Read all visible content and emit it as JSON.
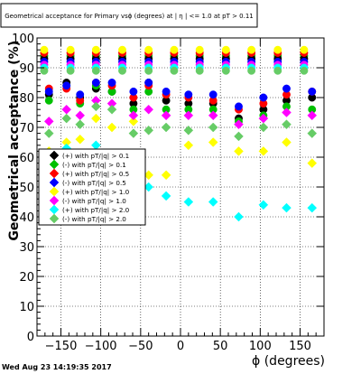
{
  "chart_data": {
    "type": "scatter",
    "title": "Geometrical acceptance for Primary vsϕ (degrees) at | η | <= 1.0 at pT > 0.11",
    "xlabel": "ϕ (degrees)",
    "ylabel": "Geometrical acceptance (%)",
    "xlim": [
      -180,
      180
    ],
    "ylim": [
      0,
      100
    ],
    "x_ticks": [
      -150,
      -100,
      -50,
      0,
      50,
      100,
      150
    ],
    "x_tick_labels": [
      "−150",
      "−100",
      "−50",
      "0",
      "50",
      "100",
      "150"
    ],
    "y_ticks": [
      0,
      10,
      20,
      30,
      40,
      50,
      60,
      70,
      80,
      90,
      100
    ],
    "grid": true,
    "legend_position": "left-middle",
    "series": [
      {
        "name": "(+) with pT/|q| > 0.1",
        "color": "#00c000",
        "marker": "circle",
        "x": [
          -171,
          -138,
          -106,
          -73,
          -40,
          -8,
          24,
          57,
          89,
          122,
          155
        ],
        "y": [
          94,
          94,
          94,
          94,
          94,
          94,
          94,
          94,
          94,
          94,
          94
        ]
      },
      {
        "name": "(-) with pT/|q| > 0.1",
        "color": "#000000",
        "marker": "circle",
        "x": [
          -171,
          -138,
          -106,
          -73,
          -40,
          -8,
          24,
          57,
          89,
          122,
          155
        ],
        "y": [
          93,
          93,
          93,
          93,
          93,
          93,
          93,
          93,
          93,
          93,
          93
        ]
      },
      {
        "name": "(+) with pT/|q| > 0.5",
        "color": "#ff0000",
        "marker": "circle",
        "x": [
          -171,
          -138,
          -106,
          -73,
          -40,
          -8,
          24,
          57,
          89,
          122,
          155
        ],
        "y": [
          95,
          95,
          95,
          95,
          95,
          95,
          95,
          95,
          95,
          95,
          95
        ]
      },
      {
        "name": "(-) with pT/|q| > 0.5",
        "color": "#0000ff",
        "marker": "circle",
        "x": [
          -171,
          -138,
          -106,
          -73,
          -40,
          -8,
          24,
          57,
          89,
          122,
          155
        ],
        "y": [
          92,
          92,
          92,
          92,
          92,
          92,
          92,
          92,
          92,
          92,
          92
        ]
      },
      {
        "name": "(+) with pT/|q| > 1.0",
        "color": "#ffff00",
        "marker": "circle",
        "x": [
          -171,
          -138,
          -106,
          -73,
          -40,
          -8,
          24,
          57,
          89,
          122,
          155
        ],
        "y": [
          96,
          96,
          96,
          96,
          96,
          96,
          96,
          96,
          96,
          96,
          96
        ]
      },
      {
        "name": "(-) with pT/|q| > 1.0",
        "color": "#ff00ff",
        "marker": "circle",
        "x": [
          -171,
          -138,
          -106,
          -73,
          -40,
          -8,
          24,
          57,
          89,
          122,
          155
        ],
        "y": [
          91,
          91,
          91,
          91,
          91,
          91,
          91,
          91,
          91,
          91,
          91
        ]
      },
      {
        "name": "(+) with pT/|q| > 2.0",
        "color": "#00ffff",
        "marker": "circle",
        "x": [
          -171,
          -138,
          -106,
          -73,
          -40,
          -8,
          24,
          57,
          89,
          122,
          155
        ],
        "y": [
          90,
          90,
          90,
          90,
          90,
          90,
          90,
          90,
          90,
          90,
          90
        ]
      },
      {
        "name": "(-) with pT/|q| > 2.0",
        "color": "#66cc66",
        "marker": "circle",
        "x": [
          -171,
          -138,
          -106,
          -73,
          -40,
          -8,
          24,
          57,
          89,
          122,
          155
        ],
        "y": [
          89,
          89,
          89,
          89,
          89,
          89,
          89,
          89,
          89,
          89,
          89
        ]
      },
      {
        "name": "(+) with pT/|q| > 0.1",
        "color": "#000000",
        "marker": "circle",
        "x": [
          -165,
          -143,
          -126,
          -106,
          -86,
          -59,
          -40,
          -18,
          10,
          41,
          73,
          104,
          133,
          165
        ],
        "y": [
          81,
          85,
          80,
          83,
          82,
          78,
          85,
          79,
          78,
          78,
          73,
          76,
          79,
          80
        ]
      },
      {
        "name": "(-) with pT/|q| > 0.1",
        "color": "#00c000",
        "marker": "circle",
        "x": [
          -165,
          -143,
          -126,
          -106,
          -86,
          -59,
          -40,
          -18,
          10,
          41,
          73,
          104,
          133,
          165
        ],
        "y": [
          79,
          84,
          78,
          84,
          82,
          76,
          82,
          76,
          76,
          76,
          72,
          74,
          77,
          76
        ]
      },
      {
        "name": "(+) with pT/|q| > 0.5",
        "color": "#ff0000",
        "marker": "circle",
        "x": [
          -165,
          -143,
          -126,
          -106,
          -86,
          -59,
          -40,
          -18,
          10,
          41,
          73,
          104,
          133,
          165
        ],
        "y": [
          83,
          83,
          79,
          85,
          84,
          80,
          84,
          81,
          80,
          79,
          76,
          78,
          81,
          82
        ]
      },
      {
        "name": "(-) with pT/|q| > 0.5",
        "color": "#0000ff",
        "marker": "circle",
        "x": [
          -165,
          -143,
          -126,
          -106,
          -86,
          -59,
          -40,
          -18,
          10,
          41,
          73,
          104,
          133,
          165
        ],
        "y": [
          82,
          84,
          81,
          85,
          85,
          82,
          85,
          82,
          81,
          81,
          77,
          80,
          83,
          82
        ]
      },
      {
        "name": "(+) with pT/|q| > 1.0",
        "color": "#ffff00",
        "marker": "diamond",
        "x": [
          -165,
          -143,
          -126,
          -106,
          -86,
          -59,
          -40,
          -18,
          10,
          41,
          73,
          104,
          133,
          165
        ],
        "y": [
          62,
          65,
          66,
          73,
          70,
          72,
          54,
          54,
          64,
          65,
          62,
          62,
          65,
          58
        ]
      },
      {
        "name": "(-) with pT/|q| > 1.0",
        "color": "#ff00ff",
        "marker": "diamond",
        "x": [
          -165,
          -143,
          -126,
          -106,
          -86,
          -59,
          -40,
          -18,
          10,
          41,
          73,
          104,
          133,
          165
        ],
        "y": [
          72,
          76,
          74,
          79,
          78,
          74,
          76,
          74,
          74,
          74,
          71,
          73,
          75,
          74
        ]
      },
      {
        "name": "(+) with pT/|q| > 2.0",
        "color": "#00ffff",
        "marker": "diamond",
        "x": [
          -165,
          -143,
          -126,
          -106,
          -86,
          -59,
          -40,
          -18,
          10,
          41,
          73,
          104,
          133,
          165
        ],
        "y": [
          52,
          63,
          57,
          64,
          54,
          61,
          50,
          47,
          45,
          45,
          40,
          44,
          43,
          43
        ]
      },
      {
        "name": "(-) with pT/|q| > 2.0",
        "color": "#66cc66",
        "marker": "diamond",
        "x": [
          -165,
          -143,
          -126,
          -106,
          -86,
          -59,
          -40,
          -18,
          10,
          41,
          73,
          104,
          133,
          165
        ],
        "y": [
          68,
          73,
          71,
          77,
          76,
          68,
          69,
          70,
          69,
          70,
          67,
          70,
          71,
          68
        ]
      }
    ],
    "legend_entries": [
      {
        "name": "(+) with pT/|q| > 0.1",
        "color": "#000000",
        "marker": "diamond"
      },
      {
        "name": "(-) with pT/|q| > 0.1",
        "color": "#00c000",
        "marker": "diamond"
      },
      {
        "name": "(+) with pT/|q| > 0.5",
        "color": "#ff0000",
        "marker": "diamond"
      },
      {
        "name": "(-) with pT/|q| > 0.5",
        "color": "#0000ff",
        "marker": "diamond"
      },
      {
        "name": "(+) with pT/|q| > 1.0",
        "color": "#ffff00",
        "marker": "diamond"
      },
      {
        "name": "(-) with pT/|q| > 1.0",
        "color": "#ff00ff",
        "marker": "diamond"
      },
      {
        "name": "(+) with pT/|q| > 2.0",
        "color": "#00ffff",
        "marker": "diamond"
      },
      {
        "name": "(-) with pT/|q| > 2.0",
        "color": "#66cc66",
        "marker": "diamond"
      }
    ]
  },
  "footer": {
    "timestamp": "Wed Aug 23 14:19:35 2017"
  }
}
